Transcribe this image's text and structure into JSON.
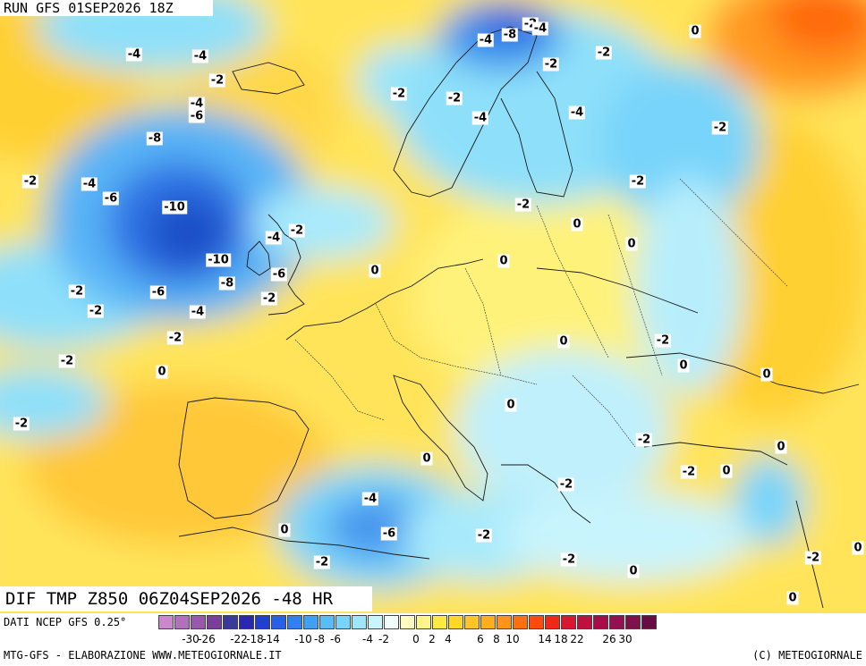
{
  "header": {
    "run_label": "RUN GFS 01SEP2026 18Z"
  },
  "map": {
    "title": "DIF TMP Z850 06Z04SEP2026 -48 HR",
    "contour_labels": [
      "-4",
      "-4",
      "-2",
      "-4",
      "-6",
      "-8",
      "-4",
      "-6",
      "-2",
      "-10",
      "-10",
      "-8",
      "-6",
      "-2",
      "-2",
      "-4",
      "-2",
      "-2",
      "0",
      "-2",
      "-4",
      "-2",
      "-6",
      "-2",
      "-4",
      "-8",
      "-2",
      "-4",
      "-2",
      "-2",
      "-2",
      "-4",
      "-4",
      "0",
      "-2",
      "-2",
      "-2",
      "0",
      "0",
      "0",
      "0",
      "-2",
      "0",
      "0",
      "-2",
      "0",
      "0",
      "0",
      "-2",
      "-2",
      "0",
      "-2",
      "-4",
      "-6",
      "-2",
      "-2",
      "0",
      "0",
      "-2",
      "0",
      "0",
      "-2",
      "0"
    ]
  },
  "legend": {
    "source": "DATI NCEP GFS 0.25°",
    "swatch_colors": [
      "#cc88cc",
      "#b070bc",
      "#9858ac",
      "#7a3f9a",
      "#3a3a9a",
      "#2828b0",
      "#2040d0",
      "#2860e8",
      "#3080f0",
      "#40a0f4",
      "#58bcf8",
      "#78d4fa",
      "#9ee6fc",
      "#c8f4fd",
      "#f2fcfc",
      "#fffbc0",
      "#fff48a",
      "#ffea40",
      "#ffd728",
      "#ffc428",
      "#ffae20",
      "#ff9418",
      "#ff7010",
      "#ff4a0e",
      "#f02818",
      "#d81830",
      "#c01040",
      "#a80c48",
      "#941050",
      "#80104c",
      "#680c44"
    ],
    "tick_labels": [
      "-30",
      "-26",
      "-22",
      "-18",
      "-14",
      "-10",
      "-8",
      "-6",
      "-4",
      "-2",
      "0",
      "2",
      "4",
      "6",
      "8",
      "10",
      "14",
      "18",
      "22",
      "26",
      "30"
    ]
  },
  "footer": {
    "credit": "MTG-GFS - ELABORAZIONE WWW.METEOGIORNALE.IT",
    "copyright": "(C) METEOGIORNALE"
  }
}
